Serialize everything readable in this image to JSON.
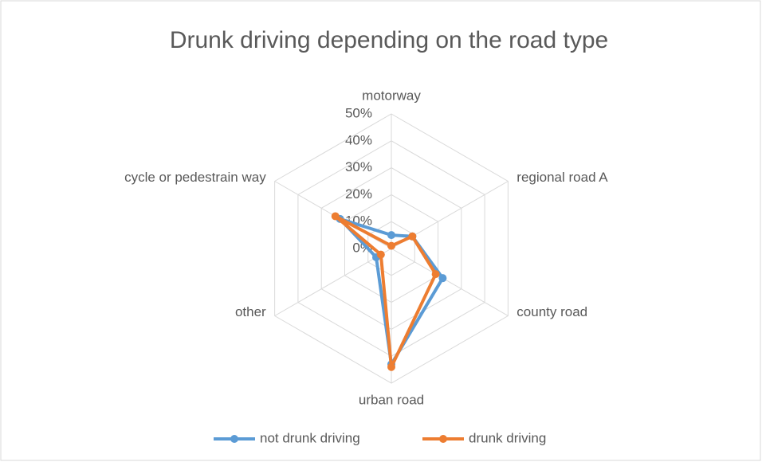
{
  "chart_data": {
    "type": "radar",
    "title": "Drunk driving depending on the road type",
    "categories": [
      "motorway",
      "regional road A",
      "county road",
      "urban road",
      "other",
      "cycle or pedestrain way"
    ],
    "series": [
      {
        "name": "not drunk driving",
        "color": "#5b9bd5",
        "values": [
          5,
          9,
          22,
          43,
          6.5,
          22
        ]
      },
      {
        "name": "drunk driving",
        "color": "#ed7d31",
        "values": [
          1,
          9,
          19,
          44,
          4.5,
          24
        ]
      }
    ],
    "ylim": [
      0,
      50
    ],
    "yticks": [
      {
        "value": 0,
        "label": "0%"
      },
      {
        "value": 10,
        "label": "10%"
      },
      {
        "value": 20,
        "label": "20%"
      },
      {
        "value": 30,
        "label": "30%"
      },
      {
        "value": 40,
        "label": "40%"
      },
      {
        "value": 50,
        "label": "50%"
      }
    ],
    "grid": true,
    "legend": "bottom"
  }
}
